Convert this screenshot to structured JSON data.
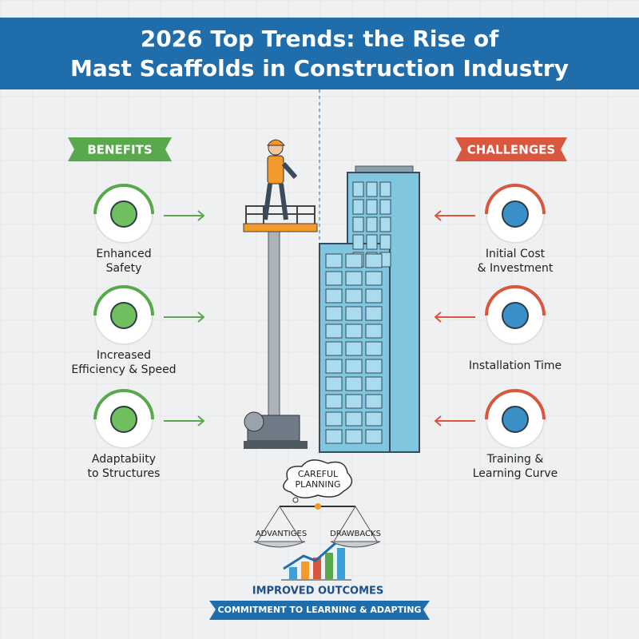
{
  "header": {
    "title": [
      "2026 Top Trends: the Rise of",
      "Mast Scaffolds in Construction Industry"
    ]
  },
  "benefits": {
    "heading": "BENEFITS",
    "items": [
      [
        "Enhanced",
        "Safety"
      ],
      [
        "Increased",
        "Efficiency & Speed"
      ],
      [
        "Adaptabiity",
        "to Structures"
      ]
    ]
  },
  "challenges": {
    "heading": "CHALLENGES",
    "items": [
      [
        "Initial Cost",
        "& Investment"
      ],
      [
        "Installation Time"
      ],
      [
        "Training &",
        "Learning Curve"
      ]
    ]
  },
  "center": {
    "thought": [
      "CAREFUL",
      "PLANNING"
    ],
    "scale_left": "ADVANTIGES",
    "scale_right": "DRAWBACKS",
    "outcome": "IMPROVED OUTCOMES",
    "banner": "COMMITMENT TO LEARNING & ADAPTING"
  }
}
